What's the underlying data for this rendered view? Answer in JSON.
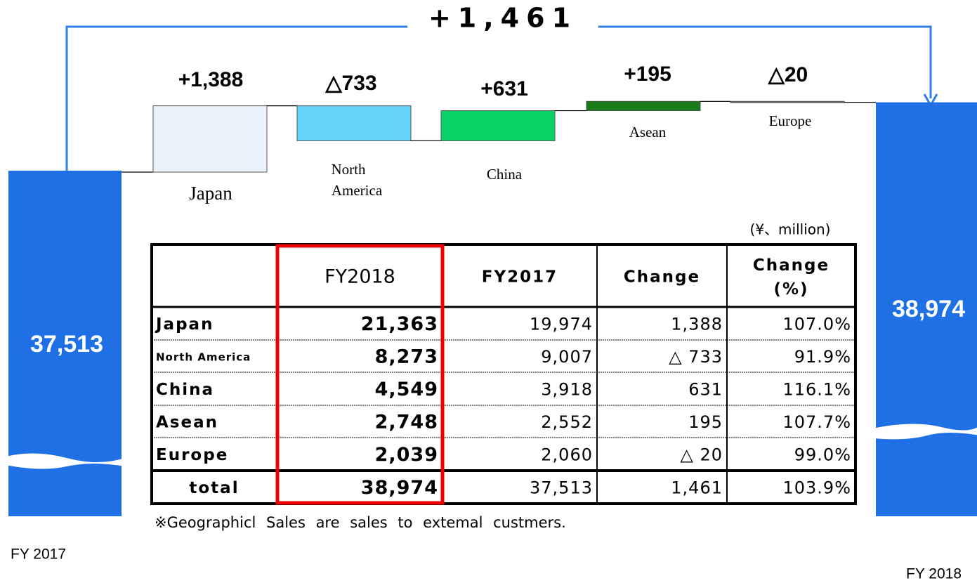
{
  "total_change": "+1,461",
  "waterfall": {
    "start": {
      "label": "FY 2017",
      "value": 37513,
      "value_label": "37,513"
    },
    "end": {
      "label": "FY 2018",
      "value": 38974,
      "value_label": "38,974"
    },
    "steps": [
      {
        "name": "Japan",
        "value": 1388,
        "value_label": "+1,388",
        "color": "#eaf2fc"
      },
      {
        "name": "North America",
        "value": -733,
        "value_label": "△733",
        "color": "#66d4fb"
      },
      {
        "name": "China",
        "value": 631,
        "value_label": "+631",
        "color": "#0ad468"
      },
      {
        "name": "Asean",
        "value": 195,
        "value_label": "+195",
        "color": "#1a7a1a"
      },
      {
        "name": "Europe",
        "value": -20,
        "value_label": "△20",
        "color": "#7f7f7f"
      }
    ]
  },
  "table": {
    "unit": "(¥、million)",
    "header": [
      "FY2018",
      "FY2017",
      "Change",
      "Change (%)"
    ],
    "rows": [
      [
        "Japan",
        "21,363",
        "19,974",
        "1,388",
        "107.0%"
      ],
      [
        "North America",
        "8,273",
        "9,007",
        "△ 733",
        "91.9%"
      ],
      [
        "China",
        "4,549",
        "3,918",
        "631",
        "116.1%"
      ],
      [
        "Asean",
        "2,748",
        "2,552",
        "195",
        "107.7%"
      ],
      [
        "Europe",
        "2,039",
        "2,060",
        "△ 20",
        "99.0%"
      ],
      [
        "total",
        "38,974",
        "37,513",
        "1,461",
        "103.9%"
      ]
    ],
    "note": "※Geographicl Sales are sales to extemal custmers."
  }
}
